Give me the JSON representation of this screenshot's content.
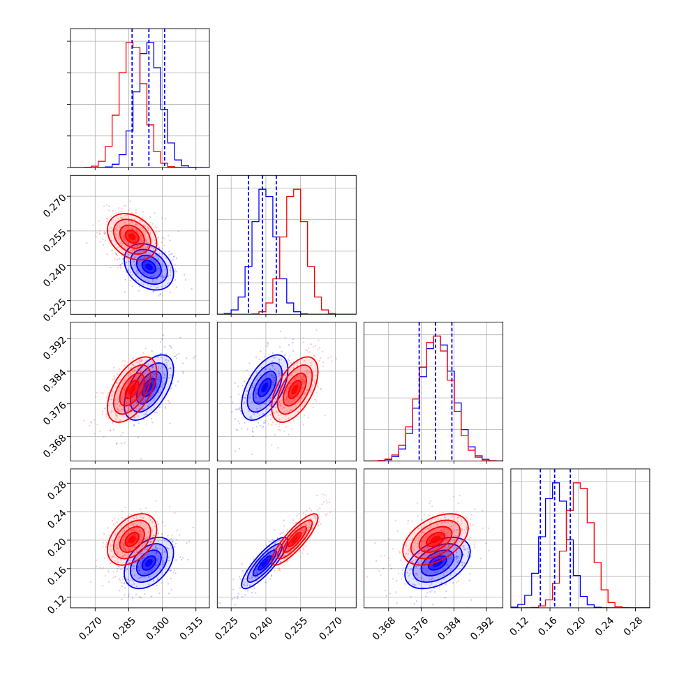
{
  "chart_data": {
    "type": "corner",
    "title": "",
    "params": [
      {
        "range": [
          0.259,
          0.321
        ],
        "ticks": [
          0.27,
          0.285,
          0.3,
          0.315
        ],
        "tick_labels": [
          "0.270",
          "0.285",
          "0.300",
          "0.315"
        ]
      },
      {
        "range": [
          0.219,
          0.279
        ],
        "ticks": [
          0.225,
          0.24,
          0.255,
          0.27
        ],
        "tick_labels": [
          "0.225",
          "0.240",
          "0.255",
          "0.270"
        ]
      },
      {
        "range": [
          0.362,
          0.396
        ],
        "ticks": [
          0.368,
          0.376,
          0.384,
          0.392
        ],
        "tick_labels": [
          "0.368",
          "0.376",
          "0.384",
          "0.392"
        ]
      },
      {
        "range": [
          0.105,
          0.3
        ],
        "ticks": [
          0.12,
          0.16,
          0.2,
          0.24,
          0.28
        ],
        "tick_labels": [
          "0.12",
          "0.16",
          "0.20",
          "0.24",
          "0.28"
        ]
      }
    ],
    "series": [
      {
        "color": "#0000ff",
        "mean": [
          0.294,
          0.2395,
          0.38,
          0.168
        ],
        "std": [
          0.0055,
          0.005,
          0.004,
          0.018
        ]
      },
      {
        "color": "#ff0000",
        "mean": [
          0.2865,
          0.2525,
          0.3795,
          0.201
        ],
        "std": [
          0.0055,
          0.005,
          0.004,
          0.018
        ]
      }
    ],
    "correlations": {
      "blue": {
        "1-0": -0.3,
        "2-0": 0.55,
        "2-1": 0.55,
        "3-0": 0.4,
        "3-1": 0.85,
        "3-2": 0.45
      },
      "red": {
        "1-0": -0.3,
        "2-0": 0.55,
        "2-1": 0.55,
        "3-0": 0.4,
        "3-1": 0.85,
        "3-2": 0.45
      }
    },
    "quantile_lines": [
      [
        0.2865,
        0.294,
        0.301
      ],
      [
        0.2325,
        0.2385,
        0.2445
      ],
      [
        0.3755,
        0.3795,
        0.3835
      ],
      [
        0.1465,
        0.1665,
        0.1885
      ]
    ],
    "quantile_line_color": "#0000ff",
    "grid": true
  }
}
